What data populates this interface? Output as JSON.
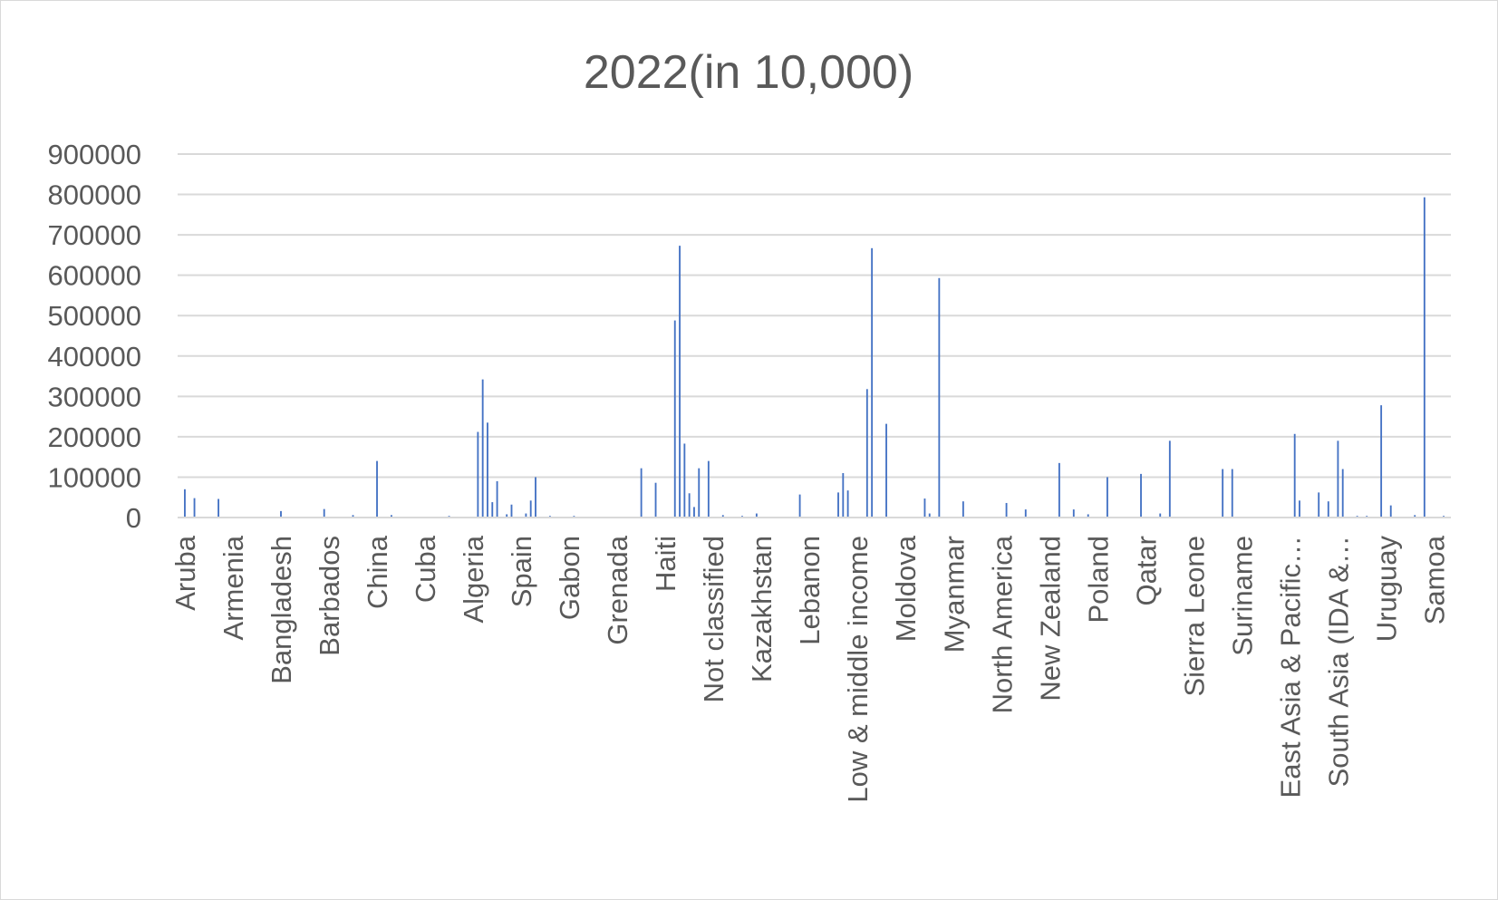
{
  "chart_data": {
    "type": "bar",
    "title": "2022(in 10,000)",
    "xlabel": "",
    "ylabel": "",
    "ylim": [
      0,
      900000
    ],
    "y_ticks": [
      0,
      100000,
      200000,
      300000,
      400000,
      500000,
      600000,
      700000,
      800000,
      900000
    ],
    "y_tick_labels": [
      "0",
      "100000",
      "200000",
      "300000",
      "400000",
      "500000",
      "600000",
      "700000",
      "800000",
      "900000"
    ],
    "grid": true,
    "legend": "none",
    "bar_color": "#4472c4",
    "category_count": 265,
    "visible_tick_labels": [
      {
        "index": 1,
        "label": "Aruba"
      },
      {
        "index": 11,
        "label": "Armenia"
      },
      {
        "index": 21,
        "label": "Bangladesh"
      },
      {
        "index": 31,
        "label": "Barbados"
      },
      {
        "index": 41,
        "label": "China"
      },
      {
        "index": 51,
        "label": "Cuba"
      },
      {
        "index": 61,
        "label": "Algeria"
      },
      {
        "index": 71,
        "label": "Spain"
      },
      {
        "index": 81,
        "label": "Gabon"
      },
      {
        "index": 91,
        "label": "Grenada"
      },
      {
        "index": 101,
        "label": "Haiti"
      },
      {
        "index": 111,
        "label": "Not classified"
      },
      {
        "index": 121,
        "label": "Kazakhstan"
      },
      {
        "index": 131,
        "label": "Lebanon"
      },
      {
        "index": 141,
        "label": "Low & middle income"
      },
      {
        "index": 151,
        "label": "Moldova"
      },
      {
        "index": 161,
        "label": "Myanmar"
      },
      {
        "index": 171,
        "label": "North America"
      },
      {
        "index": 181,
        "label": "New Zealand"
      },
      {
        "index": 191,
        "label": "Poland"
      },
      {
        "index": 201,
        "label": "Qatar"
      },
      {
        "index": 211,
        "label": "Sierra Leone"
      },
      {
        "index": 221,
        "label": "Suriname"
      },
      {
        "index": 231,
        "label": "East Asia & Pacific…"
      },
      {
        "index": 241,
        "label": "South Asia (IDA &…"
      },
      {
        "index": 251,
        "label": "Uruguay"
      },
      {
        "index": 261,
        "label": "Samoa"
      }
    ],
    "nonzero_bars": [
      {
        "index": 1,
        "value": 70000
      },
      {
        "index": 3,
        "value": 48000
      },
      {
        "index": 8,
        "value": 46000
      },
      {
        "index": 21,
        "value": 16000
      },
      {
        "index": 30,
        "value": 21000
      },
      {
        "index": 36,
        "value": 6000
      },
      {
        "index": 41,
        "value": 140000
      },
      {
        "index": 44,
        "value": 6000
      },
      {
        "index": 56,
        "value": 4000
      },
      {
        "index": 62,
        "value": 212000
      },
      {
        "index": 63,
        "value": 342000
      },
      {
        "index": 64,
        "value": 235000
      },
      {
        "index": 65,
        "value": 38000
      },
      {
        "index": 66,
        "value": 90000
      },
      {
        "index": 68,
        "value": 8000
      },
      {
        "index": 69,
        "value": 32000
      },
      {
        "index": 72,
        "value": 10000
      },
      {
        "index": 73,
        "value": 42000
      },
      {
        "index": 74,
        "value": 100000
      },
      {
        "index": 77,
        "value": 4000
      },
      {
        "index": 82,
        "value": 4000
      },
      {
        "index": 96,
        "value": 122000
      },
      {
        "index": 99,
        "value": 86000
      },
      {
        "index": 103,
        "value": 488000
      },
      {
        "index": 104,
        "value": 673000
      },
      {
        "index": 105,
        "value": 183000
      },
      {
        "index": 106,
        "value": 60000
      },
      {
        "index": 107,
        "value": 26000
      },
      {
        "index": 108,
        "value": 122000
      },
      {
        "index": 110,
        "value": 140000
      },
      {
        "index": 113,
        "value": 6000
      },
      {
        "index": 117,
        "value": 4000
      },
      {
        "index": 120,
        "value": 10000
      },
      {
        "index": 129,
        "value": 57000
      },
      {
        "index": 137,
        "value": 62000
      },
      {
        "index": 138,
        "value": 110000
      },
      {
        "index": 139,
        "value": 67000
      },
      {
        "index": 143,
        "value": 318000
      },
      {
        "index": 144,
        "value": 667000
      },
      {
        "index": 147,
        "value": 232000
      },
      {
        "index": 155,
        "value": 47000
      },
      {
        "index": 156,
        "value": 10000
      },
      {
        "index": 158,
        "value": 593000
      },
      {
        "index": 163,
        "value": 40000
      },
      {
        "index": 172,
        "value": 36000
      },
      {
        "index": 176,
        "value": 20000
      },
      {
        "index": 183,
        "value": 135000
      },
      {
        "index": 186,
        "value": 20000
      },
      {
        "index": 189,
        "value": 8000
      },
      {
        "index": 193,
        "value": 100000
      },
      {
        "index": 200,
        "value": 108000
      },
      {
        "index": 204,
        "value": 10000
      },
      {
        "index": 206,
        "value": 190000
      },
      {
        "index": 217,
        "value": 120000
      },
      {
        "index": 219,
        "value": 120000
      },
      {
        "index": 232,
        "value": 207000
      },
      {
        "index": 233,
        "value": 42000
      },
      {
        "index": 237,
        "value": 62000
      },
      {
        "index": 239,
        "value": 40000
      },
      {
        "index": 241,
        "value": 190000
      },
      {
        "index": 242,
        "value": 120000
      },
      {
        "index": 245,
        "value": 4000
      },
      {
        "index": 247,
        "value": 4000
      },
      {
        "index": 250,
        "value": 278000
      },
      {
        "index": 252,
        "value": 30000
      },
      {
        "index": 257,
        "value": 6000
      },
      {
        "index": 259,
        "value": 793000
      },
      {
        "index": 263,
        "value": 4000
      }
    ]
  }
}
